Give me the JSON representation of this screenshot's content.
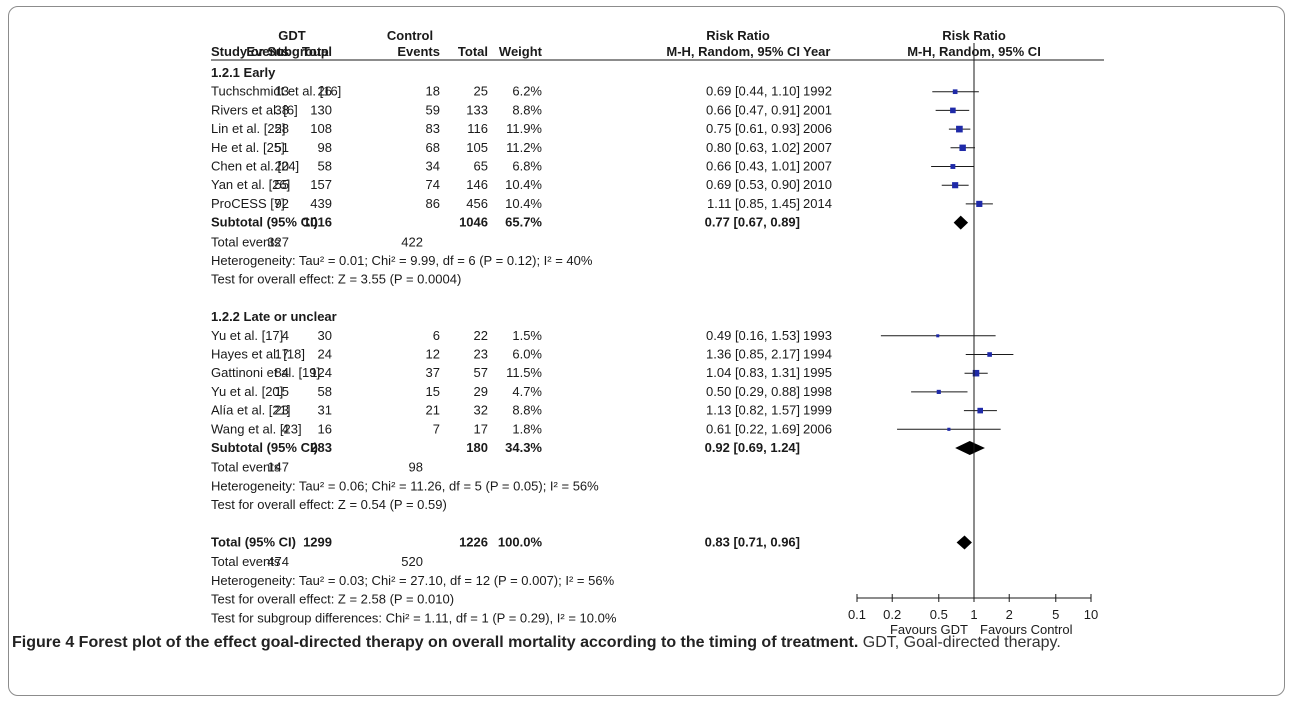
{
  "header": {
    "group1": "GDT",
    "group2": "Control",
    "rr_numeric": "Risk Ratio",
    "rr_plot": "Risk Ratio",
    "col_study": "Study or Subgroup",
    "col_events1": "Events",
    "col_total1": "Total",
    "col_events2": "Events",
    "col_total2": "Total",
    "col_weight": "Weight",
    "col_ci": "M-H, Random, 95% CI",
    "col_year": "Year",
    "col_method": "M-H, Random, 95% CI"
  },
  "chart_data": {
    "type": "forest",
    "x_scale": "log",
    "x_ticks": [
      {
        "value": 0.1,
        "label": "0.1"
      },
      {
        "value": 0.2,
        "label": "0.2"
      },
      {
        "value": 0.5,
        "label": "0.5"
      },
      {
        "value": 1,
        "label": "1"
      },
      {
        "value": 2,
        "label": "2"
      },
      {
        "value": 5,
        "label": "5"
      },
      {
        "value": 10,
        "label": "10"
      }
    ],
    "favours_left": "Favours GDT",
    "favours_right": "Favours Control",
    "subgroups": [
      {
        "title": "1.2.1 Early",
        "studies": [
          {
            "name": "Tuchschmidt et al. [16]",
            "e1": "13",
            "t1": "26",
            "e2": "18",
            "t2": "25",
            "weight": "6.2%",
            "ci_text": "0.69 [0.44, 1.10]",
            "year": "1992",
            "rr": 0.69,
            "lo": 0.44,
            "hi": 1.1
          },
          {
            "name": "Rivers et al. [6]",
            "e1": "38",
            "t1": "130",
            "e2": "59",
            "t2": "133",
            "weight": "8.8%",
            "ci_text": "0.66 [0.47, 0.91]",
            "year": "2001",
            "rr": 0.66,
            "lo": 0.47,
            "hi": 0.91
          },
          {
            "name": "Lin et al. [22]",
            "e1": "58",
            "t1": "108",
            "e2": "83",
            "t2": "116",
            "weight": "11.9%",
            "ci_text": "0.75 [0.61, 0.93]",
            "year": "2006",
            "rr": 0.75,
            "lo": 0.61,
            "hi": 0.93
          },
          {
            "name": "He et al. [25]",
            "e1": "51",
            "t1": "98",
            "e2": "68",
            "t2": "105",
            "weight": "11.2%",
            "ci_text": "0.80 [0.63, 1.02]",
            "year": "2007",
            "rr": 0.8,
            "lo": 0.63,
            "hi": 1.02
          },
          {
            "name": "Chen et al. [24]",
            "e1": "20",
            "t1": "58",
            "e2": "34",
            "t2": "65",
            "weight": "6.8%",
            "ci_text": "0.66 [0.43, 1.01]",
            "year": "2007",
            "rr": 0.66,
            "lo": 0.43,
            "hi": 1.01
          },
          {
            "name": "Yan et al. [26]",
            "e1": "55",
            "t1": "157",
            "e2": "74",
            "t2": "146",
            "weight": "10.4%",
            "ci_text": "0.69 [0.53, 0.90]",
            "year": "2010",
            "rr": 0.69,
            "lo": 0.53,
            "hi": 0.9
          },
          {
            "name": "ProCESS [7]",
            "e1": "92",
            "t1": "439",
            "e2": "86",
            "t2": "456",
            "weight": "10.4%",
            "ci_text": "1.11 [0.85, 1.45]",
            "year": "2014",
            "rr": 1.11,
            "lo": 0.85,
            "hi": 1.45
          }
        ],
        "subtotal": {
          "label": "Subtotal (95% CI)",
          "t1": "1016",
          "t2": "1046",
          "weight": "65.7%",
          "ci_text": "0.77 [0.67, 0.89]",
          "rr": 0.77,
          "lo": 0.67,
          "hi": 0.89
        },
        "total_events": {
          "label": "Total events",
          "e1": "327",
          "e2": "422"
        },
        "heterogeneity": "Heterogeneity: Tau² = 0.01; Chi² = 9.99, df = 6 (P = 0.12); I² = 40%",
        "overall_test": "Test for overall effect: Z = 3.55 (P = 0.0004)"
      },
      {
        "title": "1.2.2 Late or unclear",
        "studies": [
          {
            "name": "Yu et al. [17]",
            "e1": "4",
            "t1": "30",
            "e2": "6",
            "t2": "22",
            "weight": "1.5%",
            "ci_text": "0.49 [0.16, 1.53]",
            "year": "1993",
            "rr": 0.49,
            "lo": 0.16,
            "hi": 1.53
          },
          {
            "name": "Hayes et al. [18]",
            "e1": "17",
            "t1": "24",
            "e2": "12",
            "t2": "23",
            "weight": "6.0%",
            "ci_text": "1.36 [0.85, 2.17]",
            "year": "1994",
            "rr": 1.36,
            "lo": 0.85,
            "hi": 2.17
          },
          {
            "name": "Gattinoni et al. [19]",
            "e1": "84",
            "t1": "124",
            "e2": "37",
            "t2": "57",
            "weight": "11.5%",
            "ci_text": "1.04 [0.83, 1.31]",
            "year": "1995",
            "rr": 1.04,
            "lo": 0.83,
            "hi": 1.31
          },
          {
            "name": "Yu et al. [20]",
            "e1": "15",
            "t1": "58",
            "e2": "15",
            "t2": "29",
            "weight": "4.7%",
            "ci_text": "0.50 [0.29, 0.88]",
            "year": "1998",
            "rr": 0.5,
            "lo": 0.29,
            "hi": 0.88
          },
          {
            "name": "Alía et al. [21]",
            "e1": "23",
            "t1": "31",
            "e2": "21",
            "t2": "32",
            "weight": "8.8%",
            "ci_text": "1.13 [0.82, 1.57]",
            "year": "1999",
            "rr": 1.13,
            "lo": 0.82,
            "hi": 1.57
          },
          {
            "name": "Wang et al. [23]",
            "e1": "4",
            "t1": "16",
            "e2": "7",
            "t2": "17",
            "weight": "1.8%",
            "ci_text": "0.61 [0.22, 1.69]",
            "year": "2006",
            "rr": 0.61,
            "lo": 0.22,
            "hi": 1.69
          }
        ],
        "subtotal": {
          "label": "Subtotal (95% CI)",
          "t1": "283",
          "t2": "180",
          "weight": "34.3%",
          "ci_text": "0.92 [0.69, 1.24]",
          "rr": 0.92,
          "lo": 0.69,
          "hi": 1.24
        },
        "total_events": {
          "label": "Total events",
          "e1": "147",
          "e2": "98"
        },
        "heterogeneity": "Heterogeneity: Tau² = 0.06; Chi² = 11.26, df = 5 (P = 0.05); I² = 56%",
        "overall_test": "Test for overall effect: Z = 0.54 (P = 0.59)"
      }
    ],
    "total": {
      "label": "Total (95% CI)",
      "t1": "1299",
      "t2": "1226",
      "weight": "100.0%",
      "ci_text": "0.83 [0.71, 0.96]",
      "rr": 0.83,
      "lo": 0.71,
      "hi": 0.96
    },
    "total_events": {
      "label": "Total events",
      "e1": "474",
      "e2": "520"
    },
    "footer": [
      "Heterogeneity: Tau² = 0.03; Chi² = 27.10, df = 12 (P = 0.007); I² = 56%",
      "Test for overall effect: Z = 2.58 (P = 0.010)",
      "Test for subgroup differences: Chi² = 1.11, df = 1 (P = 0.29), I² = 10.0%"
    ]
  },
  "caption": {
    "label": "Figure 4 Forest plot of the effect goal-directed therapy on overall mortality according to the timing of treatment.",
    "text": " GDT, Goal-directed therapy."
  },
  "colors": {
    "marker": "#1f2aa8",
    "line": "#1a1a1a"
  }
}
